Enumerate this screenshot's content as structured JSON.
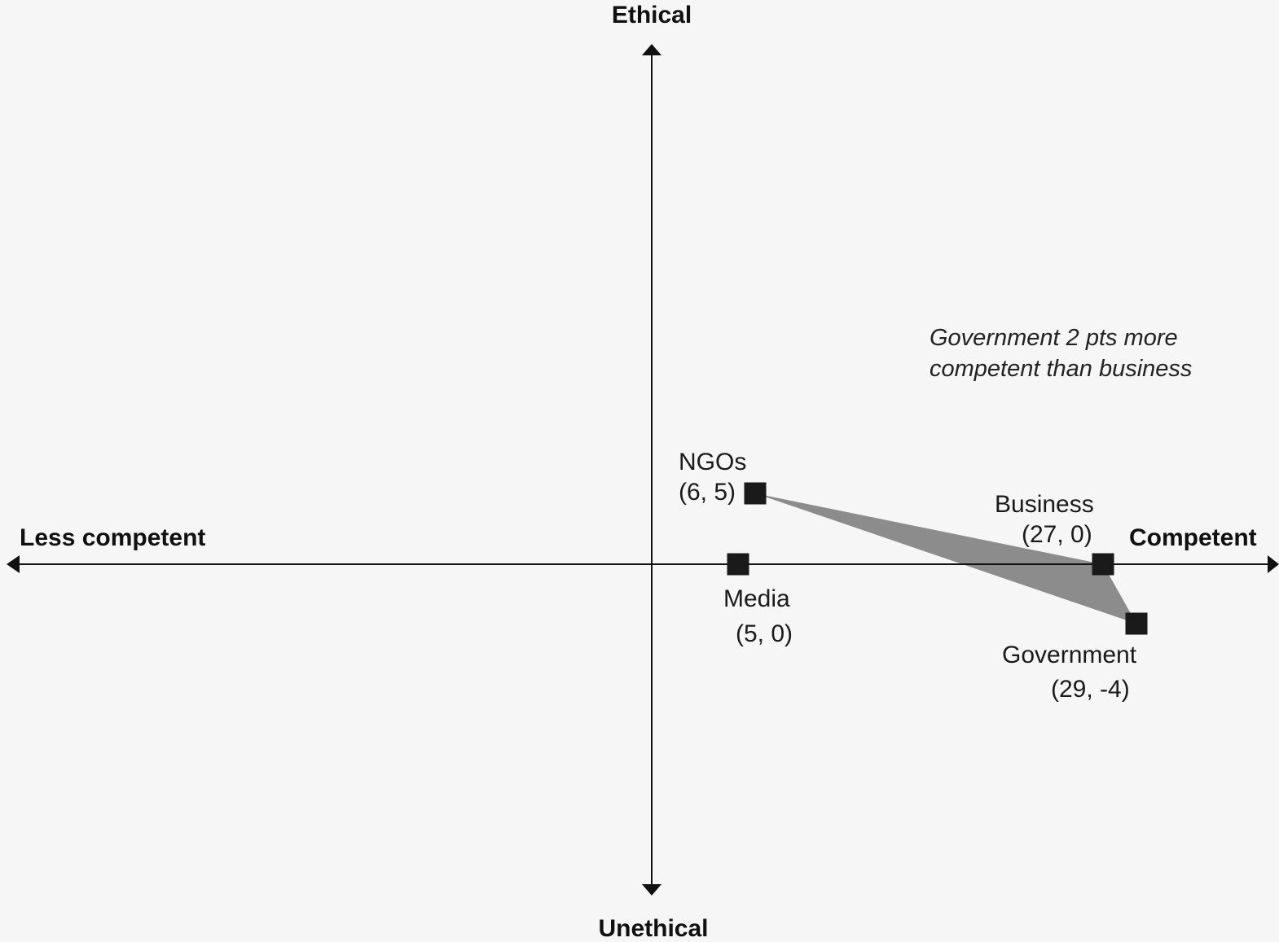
{
  "chart_data": {
    "type": "scatter",
    "title": "",
    "axes": {
      "x_positive_label": "Competent",
      "x_negative_label": "Less competent",
      "y_positive_label": "Ethical",
      "y_negative_label": "Unethical"
    },
    "points": [
      {
        "name": "NGOs",
        "coord_label": "(6, 5)",
        "x": 6,
        "y": 5
      },
      {
        "name": "Media",
        "coord_label": "(5, 0)",
        "x": 5,
        "y": 0
      },
      {
        "name": "Business",
        "coord_label": "(27, 0)",
        "x": 27,
        "y": 0
      },
      {
        "name": "Government",
        "coord_label": "(29, -4)",
        "x": 29,
        "y": -4
      }
    ],
    "highlight_polygon": [
      "NGOs",
      "Business",
      "Government"
    ],
    "annotation": {
      "lines": [
        "Government 2 pts more",
        "competent than business"
      ]
    },
    "colors": {
      "marker": "#1a1a1a",
      "polygon": "#8c8c8c",
      "axis": "#111111",
      "background": "#f6f6f6"
    },
    "grid": false,
    "legend": "none"
  }
}
